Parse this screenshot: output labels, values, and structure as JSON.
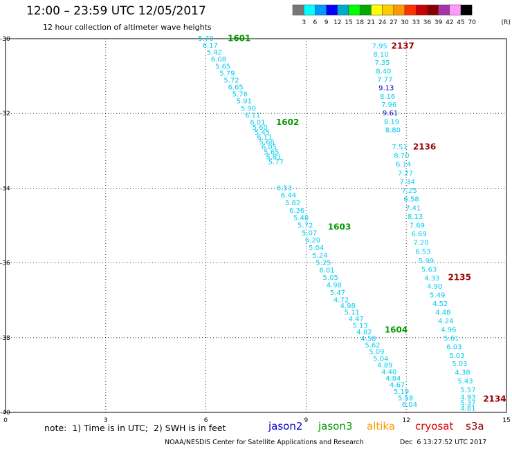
{
  "header": {
    "title": "12:00 – 23:59 UTC 12/05/2017",
    "subtitle": "12 hour collection of altimeter wave heights"
  },
  "legend": {
    "colors": [
      "#777777",
      "#00ffff",
      "#0099ff",
      "#0000ff",
      "#00aacc",
      "#00ff00",
      "#00aa00",
      "#ffff00",
      "#ffcc00",
      "#ff9900",
      "#ff3300",
      "#cc0000",
      "#880000",
      "#aa33aa",
      "#ff99ff",
      "#000000"
    ],
    "labels": [
      "3",
      "6",
      "9",
      "12",
      "15",
      "18",
      "21",
      "24",
      "27",
      "30",
      "33",
      "36",
      "39",
      "42",
      "45",
      "70"
    ],
    "unit": "(ft)"
  },
  "footer": {
    "note": "note:  1) Time is in UTC;  2) SWH is in feet",
    "satellites": [
      {
        "name": "jason2",
        "color": "#0000cc"
      },
      {
        "name": "jason3",
        "color": "#009900"
      },
      {
        "name": "altika",
        "color": "#ff9900"
      },
      {
        "name": "cryosat",
        "color": "#dd0000"
      },
      {
        "name": "s3a",
        "color": "#990000"
      }
    ],
    "credit": "NOAA/NESDIS Center for Satellite Applications and Research",
    "generated": "Dec  6 13:27:52 UTC 2017"
  },
  "chart_data": {
    "type": "scatter",
    "xlim": [
      0,
      15
    ],
    "ylim": [
      -40,
      -30
    ],
    "xticks": [
      "0",
      "3",
      "6",
      "9",
      "12",
      "15"
    ],
    "yticks": [
      "-30",
      "-32",
      "-34",
      "-36",
      "-38",
      "-40"
    ],
    "grid": true,
    "passes": [
      {
        "label": "1601",
        "satellite": "jason3",
        "color": "#009900",
        "label_at": [
          6.65,
          -30.0
        ],
        "start": [
          6.0,
          -30.0
        ],
        "end": [
          7.4,
          -32.05
        ],
        "values": [
          "5.70",
          "6.17",
          "5.42",
          "6.08",
          "5.65",
          "5.79",
          "5.72",
          "6.65",
          "5.76",
          "5.91",
          "5.90",
          "6.11"
        ]
      },
      {
        "label": "1602",
        "satellite": "jason3",
        "color": "#009900",
        "label_at": [
          8.1,
          -32.25
        ],
        "start": [
          7.55,
          -32.25
        ],
        "end": [
          8.1,
          -33.3
        ],
        "values": [
          "6.01",
          "5.60",
          "5.45",
          "6.11",
          "5.66",
          "6.05",
          "5.65",
          "5.81",
          "5.77"
        ]
      },
      {
        "label": "",
        "satellite": "jason3",
        "color": "#009900",
        "start": [
          8.35,
          -34.0
        ],
        "end": [
          9.1,
          -35.2
        ],
        "values": [
          "6.53",
          "6.44",
          "5.82",
          "6.36",
          "5.48",
          "5.72",
          "5.07"
        ]
      },
      {
        "label": "1603",
        "satellite": "jason3",
        "color": "#009900",
        "label_at": [
          9.65,
          -35.05
        ],
        "start": [
          9.2,
          -35.4
        ],
        "end": [
          10.05,
          -37.0
        ],
        "values": [
          "6.20",
          "5.04",
          "5.24",
          "5.25",
          "6.01",
          "5.05",
          "4.98",
          "5.47",
          "4.72"
        ]
      },
      {
        "label": "1604",
        "satellite": "jason3",
        "color": "#009900",
        "label_at": [
          11.35,
          -37.8
        ],
        "start": [
          10.25,
          -37.15
        ],
        "end": [
          12.1,
          -39.8
        ],
        "values": [
          "4.98",
          "5.11",
          "4.47",
          "5.13",
          "4.82",
          "4.58",
          "5.62",
          "5.09",
          "5.04",
          "4.89",
          "4.40",
          "4.84",
          "4.67",
          "5.19",
          "5.58",
          "6.04"
        ]
      },
      {
        "label": "2137",
        "satellite": "s3a",
        "color": "#990000",
        "label_at": [
          11.55,
          -30.2
        ],
        "start": [
          11.2,
          -30.2
        ],
        "end": [
          11.6,
          -32.45
        ],
        "values": [
          "7.95",
          "8.10",
          "7.35",
          "8.40",
          "7.77",
          "9.13",
          "8.16",
          "7.96",
          "9.61",
          "8.19",
          "8.80"
        ]
      },
      {
        "label": "2136",
        "satellite": "s3a",
        "color": "#990000",
        "label_at": [
          12.2,
          -32.9
        ],
        "start": [
          11.8,
          -32.9
        ],
        "end": [
          12.5,
          -35.7
        ],
        "values": [
          "7.51",
          "8.70",
          "6.14",
          "7.27",
          "7.34",
          "7.25",
          "6.58",
          "7.41",
          "8.13",
          "7.69",
          "6.69",
          "7.20",
          "6.53"
        ]
      },
      {
        "label": "2135",
        "satellite": "s3a",
        "color": "#990000",
        "label_at": [
          13.25,
          -36.4
        ],
        "start": [
          12.6,
          -35.95
        ],
        "end": [
          13.85,
          -39.4
        ],
        "values": [
          "5.99",
          "5.63",
          "4.33",
          "4.90",
          "5.49",
          "4.52",
          "4.48",
          "4.24",
          "4.96",
          "5.61",
          "6.03",
          "5.03",
          "5.03",
          "4.38",
          "5.43",
          "5.57"
        ]
      },
      {
        "label": "2134",
        "satellite": "s3a",
        "color": "#990000",
        "label_at": [
          14.3,
          -39.65
        ],
        "start": [
          13.85,
          -39.6
        ],
        "end": [
          13.85,
          -39.9
        ],
        "values": [
          "4.93",
          "5.37",
          "4.81"
        ]
      }
    ]
  }
}
